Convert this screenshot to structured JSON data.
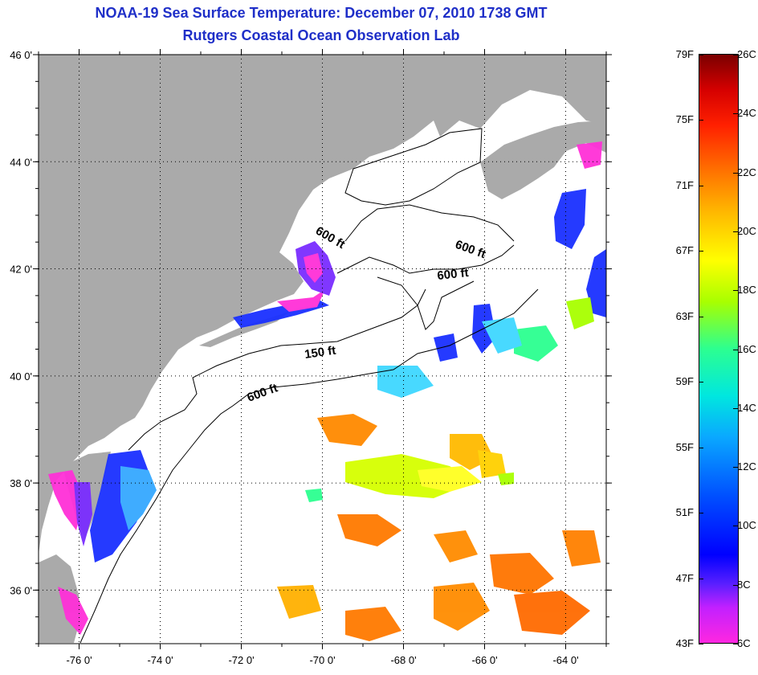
{
  "header": {
    "title": "NOAA-19 Sea Surface Temperature:  December 07, 2010 1738 GMT",
    "subtitle": "Rutgers Coastal Ocean Observation Lab"
  },
  "map": {
    "lon_range": [
      -77.0,
      -63.0
    ],
    "lat_range": [
      35.0,
      46.0
    ],
    "lon_ticks": [
      {
        "value": -76,
        "label": "-76 0'"
      },
      {
        "value": -74,
        "label": "-74 0'"
      },
      {
        "value": -72,
        "label": "-72 0'"
      },
      {
        "value": -70,
        "label": "-70 0'"
      },
      {
        "value": -68,
        "label": "-68 0'"
      },
      {
        "value": -66,
        "label": "-66 0'"
      },
      {
        "value": -64,
        "label": "-64 0'"
      }
    ],
    "lat_ticks": [
      {
        "value": 46,
        "label": "46 0'"
      },
      {
        "value": 44,
        "label": "44 0'"
      },
      {
        "value": 42,
        "label": "42 0'"
      },
      {
        "value": 40,
        "label": "40 0'"
      },
      {
        "value": 38,
        "label": "38 0'"
      },
      {
        "value": 36,
        "label": "36 0'"
      }
    ],
    "contour_labels": [
      "600 ft",
      "600 ft",
      "600 ft",
      "150 ft",
      "600 ft"
    ],
    "colors": {
      "land": "#aaaaaa",
      "ocean": "#ffffff",
      "grid": "#000000"
    }
  },
  "colorbar": {
    "range_f": [
      43,
      79
    ],
    "range_c": [
      6,
      26
    ],
    "f_labels": [
      "79F",
      "75F",
      "71F",
      "67F",
      "63F",
      "59F",
      "55F",
      "51F",
      "47F",
      "43F"
    ],
    "c_labels": [
      "26C",
      "24C",
      "22C",
      "20C",
      "18C",
      "16C",
      "14C",
      "12C",
      "10C",
      "8C",
      "6C"
    ]
  }
}
